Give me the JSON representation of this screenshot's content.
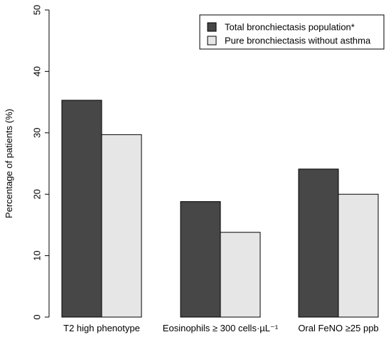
{
  "chart_data": {
    "type": "bar",
    "ylabel": "Percentage of patients (%)",
    "ylim": [
      0,
      50
    ],
    "yticks": [
      0,
      10,
      20,
      30,
      40,
      50
    ],
    "categories": [
      "T2 high phenotype",
      "Eosinophils ≥ 300 cells·µL⁻¹",
      "Oral FeNO ≥25 ppb"
    ],
    "series": [
      {
        "name": "Total bronchiectasis population*",
        "values": [
          35.3,
          18.8,
          24.1
        ],
        "color": "#474747"
      },
      {
        "name": "Pure bronchiectasis without asthma",
        "values": [
          29.7,
          13.8,
          20.0
        ],
        "color": "#e6e6e6"
      }
    ],
    "legend": "top-right",
    "grid": false
  }
}
